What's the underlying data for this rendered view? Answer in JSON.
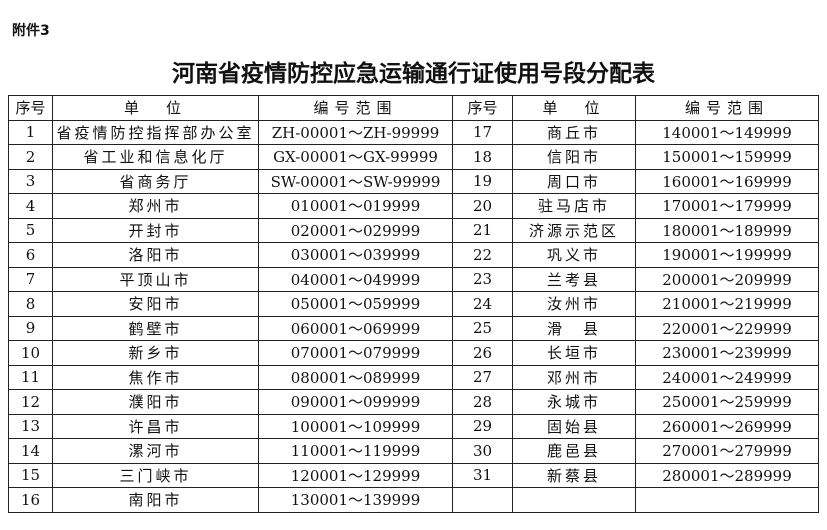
{
  "attachment_label": "附件3",
  "title": "河南省疫情防控应急运输通行证使用号段分配表",
  "headers": [
    "序号",
    "单　位",
    "编号范围",
    "序号",
    "单　位",
    "编号范围"
  ],
  "left_rows": [
    {
      "no": "1",
      "unit": "省疫情防控指挥部办公室",
      "range": "ZH-00001～ZH-99999"
    },
    {
      "no": "2",
      "unit": "省工业和信息化厅",
      "range": "GX-00001～GX-99999"
    },
    {
      "no": "3",
      "unit": "省商务厅",
      "range": "SW-00001～SW-99999"
    },
    {
      "no": "4",
      "unit": "郑州市",
      "range": "010001～019999"
    },
    {
      "no": "5",
      "unit": "开封市",
      "range": "020001～029999"
    },
    {
      "no": "6",
      "unit": "洛阳市",
      "range": "030001～039999"
    },
    {
      "no": "7",
      "unit": "平顶山市",
      "range": "040001～049999"
    },
    {
      "no": "8",
      "unit": "安阳市",
      "range": "050001～059999"
    },
    {
      "no": "9",
      "unit": "鹤壁市",
      "range": "060001～069999"
    },
    {
      "no": "10",
      "unit": "新乡市",
      "range": "070001～079999"
    },
    {
      "no": "11",
      "unit": "焦作市",
      "range": "080001～089999"
    },
    {
      "no": "12",
      "unit": "濮阳市",
      "range": "090001～099999"
    },
    {
      "no": "13",
      "unit": "许昌市",
      "range": "100001～109999"
    },
    {
      "no": "14",
      "unit": "漯河市",
      "range": "110001～119999"
    },
    {
      "no": "15",
      "unit": "三门峡市",
      "range": "120001～129999"
    },
    {
      "no": "16",
      "unit": "南阳市",
      "range": "130001～139999"
    }
  ],
  "right_rows": [
    {
      "no": "17",
      "unit": "商丘市",
      "range": "140001～149999"
    },
    {
      "no": "18",
      "unit": "信阳市",
      "range": "150001～159999"
    },
    {
      "no": "19",
      "unit": "周口市",
      "range": "160001～169999"
    },
    {
      "no": "20",
      "unit": "驻马店市",
      "range": "170001～179999"
    },
    {
      "no": "21",
      "unit": "济源示范区",
      "range": "180001～189999"
    },
    {
      "no": "22",
      "unit": "巩义市",
      "range": "190001～199999"
    },
    {
      "no": "23",
      "unit": "兰考县",
      "range": "200001～209999"
    },
    {
      "no": "24",
      "unit": "汝州市",
      "range": "210001～219999"
    },
    {
      "no": "25",
      "unit": "滑　县",
      "range": "220001～229999"
    },
    {
      "no": "26",
      "unit": "长垣市",
      "range": "230001～239999"
    },
    {
      "no": "27",
      "unit": "邓州市",
      "range": "240001～249999"
    },
    {
      "no": "28",
      "unit": "永城市",
      "range": "250001～259999"
    },
    {
      "no": "29",
      "unit": "固始县",
      "range": "260001～269999"
    },
    {
      "no": "30",
      "unit": "鹿邑县",
      "range": "270001～279999"
    },
    {
      "no": "31",
      "unit": "新蔡县",
      "range": "280001～289999"
    },
    {
      "no": "",
      "unit": "",
      "range": ""
    }
  ]
}
